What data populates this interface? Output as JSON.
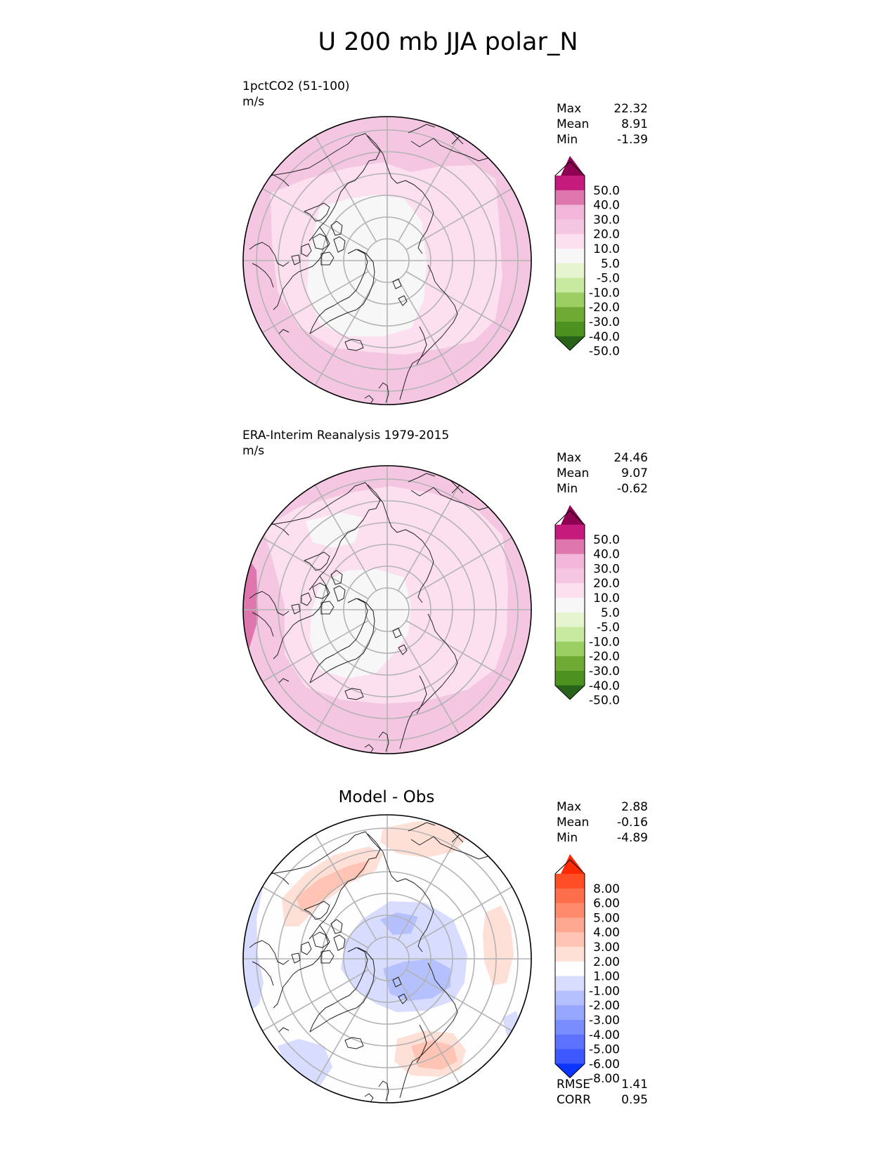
{
  "figure": {
    "title": "U 200 mb JJA polar_N"
  },
  "chart_data": [
    {
      "type": "heatmap",
      "projection": "north-polar-stereographic",
      "title": "1pctCO2 (51-100)",
      "units": "m/s",
      "stats": {
        "Max": "22.32",
        "Mean": "8.91",
        "Min": "-1.39"
      },
      "colorbar": {
        "levels": [
          "50.0",
          "40.0",
          "30.0",
          "20.0",
          "10.0",
          "5.0",
          "-5.0",
          "-10.0",
          "-20.0",
          "-30.0",
          "-40.0",
          "-50.0"
        ],
        "colors": [
          "#8e0152",
          "#c51b7d",
          "#de77ae",
          "#f1b6da",
          "#f4c6e2",
          "#fde0ef",
          "#f7f7f7",
          "#e6f5d0",
          "#c7e9a0",
          "#9ccf63",
          "#6fab34",
          "#4d9221",
          "#276419"
        ]
      }
    },
    {
      "type": "heatmap",
      "projection": "north-polar-stereographic",
      "title": "ERA-Interim Reanalysis 1979-2015",
      "units": "m/s",
      "stats": {
        "Max": "24.46",
        "Mean": "9.07",
        "Min": "-0.62"
      },
      "colorbar": {
        "levels": [
          "50.0",
          "40.0",
          "30.0",
          "20.0",
          "10.0",
          "5.0",
          "-5.0",
          "-10.0",
          "-20.0",
          "-30.0",
          "-40.0",
          "-50.0"
        ],
        "colors": [
          "#8e0152",
          "#c51b7d",
          "#de77ae",
          "#f1b6da",
          "#f4c6e2",
          "#fde0ef",
          "#f7f7f7",
          "#e6f5d0",
          "#c7e9a0",
          "#9ccf63",
          "#6fab34",
          "#4d9221",
          "#276419"
        ]
      }
    },
    {
      "type": "heatmap",
      "projection": "north-polar-stereographic",
      "title": "Model - Obs",
      "stats": {
        "Max": "2.88",
        "Mean": "-0.16",
        "Min": "-4.89"
      },
      "metrics": {
        "RMSE": "1.41",
        "CORR": "0.95"
      },
      "colorbar": {
        "levels": [
          "8.00",
          "6.00",
          "5.00",
          "4.00",
          "3.00",
          "2.00",
          "1.00",
          "-1.00",
          "-2.00",
          "-3.00",
          "-4.00",
          "-5.00",
          "-6.00",
          "-8.00"
        ],
        "colors": [
          "#ff2a00",
          "#ff4d26",
          "#ff6e4a",
          "#ff8a6c",
          "#ffa891",
          "#ffc4b4",
          "#ffe0d6",
          "#fefefe",
          "#d8ddff",
          "#b5c0ff",
          "#97a6ff",
          "#7a8dff",
          "#5c72ff",
          "#3d58ff",
          "#0a35ff"
        ]
      }
    }
  ]
}
